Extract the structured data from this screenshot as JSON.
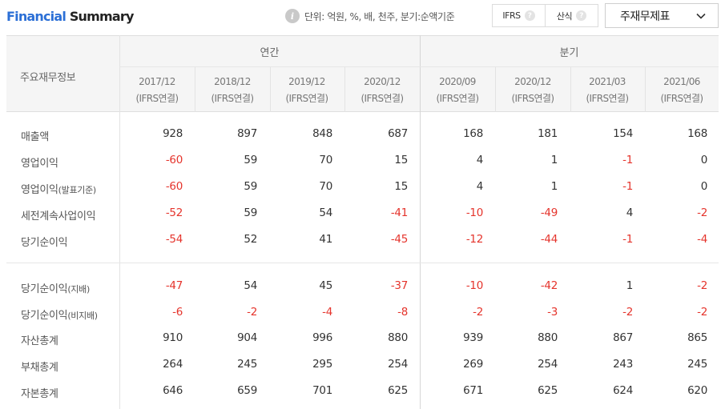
{
  "header": {
    "title_part1": "Financial",
    "title_part2": "Summary",
    "unit_text": "단위: 억원, %, 배, 천주, 분기:순액기준",
    "toggle": [
      {
        "label": "IFRS",
        "help": "?"
      },
      {
        "label": "산식",
        "help": "?"
      }
    ],
    "dropdown_value": "주재무제표"
  },
  "table": {
    "row_header_label": "주요재무정보",
    "groups": [
      {
        "label": "연간"
      },
      {
        "label": "분기"
      }
    ],
    "columns": [
      {
        "period": "2017/12",
        "basis": "(IFRS연결)"
      },
      {
        "period": "2018/12",
        "basis": "(IFRS연결)"
      },
      {
        "period": "2019/12",
        "basis": "(IFRS연결)"
      },
      {
        "period": "2020/12",
        "basis": "(IFRS연결)"
      },
      {
        "period": "2020/09",
        "basis": "(IFRS연결)"
      },
      {
        "period": "2020/12",
        "basis": "(IFRS연결)"
      },
      {
        "period": "2021/03",
        "basis": "(IFRS연결)"
      },
      {
        "period": "2021/06",
        "basis": "(IFRS연결)"
      }
    ],
    "rows": [
      {
        "label": "매출액",
        "sub": "",
        "values": [
          "928",
          "897",
          "848",
          "687",
          "168",
          "181",
          "154",
          "168"
        ]
      },
      {
        "label": "영업이익",
        "sub": "",
        "values": [
          "-60",
          "59",
          "70",
          "15",
          "4",
          "1",
          "-1",
          "0"
        ]
      },
      {
        "label": "영업이익",
        "sub": "(발표기준)",
        "values": [
          "-60",
          "59",
          "70",
          "15",
          "4",
          "1",
          "-1",
          "0"
        ]
      },
      {
        "label": "세전계속사업이익",
        "sub": "",
        "values": [
          "-52",
          "59",
          "54",
          "-41",
          "-10",
          "-49",
          "4",
          "-2"
        ]
      },
      {
        "label": "당기순이익",
        "sub": "",
        "values": [
          "-54",
          "52",
          "41",
          "-45",
          "-12",
          "-44",
          "-1",
          "-4"
        ]
      },
      {
        "label": "당기순이익",
        "sub": "(지배)",
        "values": [
          "-47",
          "54",
          "45",
          "-37",
          "-10",
          "-42",
          "1",
          "-2"
        ]
      },
      {
        "label": "당기순이익",
        "sub": "(비지배)",
        "values": [
          "-6",
          "-2",
          "-4",
          "-8",
          "-2",
          "-3",
          "-2",
          "-2"
        ]
      },
      {
        "label": "자산총계",
        "sub": "",
        "values": [
          "910",
          "904",
          "996",
          "880",
          "939",
          "880",
          "867",
          "865"
        ]
      },
      {
        "label": "부채총계",
        "sub": "",
        "values": [
          "264",
          "245",
          "295",
          "254",
          "269",
          "254",
          "243",
          "245"
        ]
      },
      {
        "label": "자본총계",
        "sub": "",
        "values": [
          "646",
          "659",
          "701",
          "625",
          "671",
          "625",
          "624",
          "620"
        ]
      }
    ]
  }
}
